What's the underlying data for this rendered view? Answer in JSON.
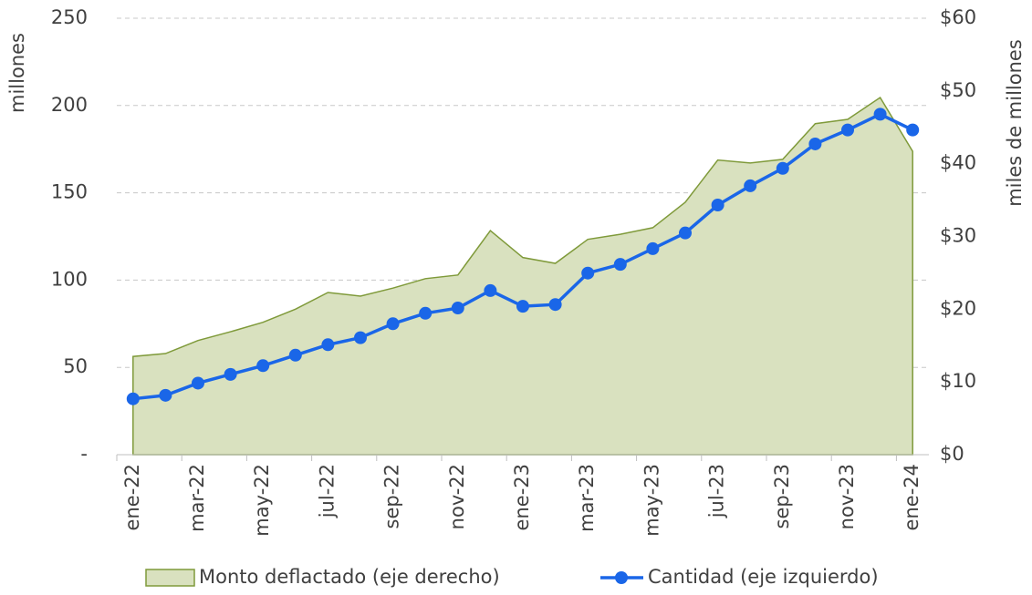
{
  "chart_data": {
    "type": "line-area",
    "ylabel": "millones",
    "y2label": "miles de millones",
    "categories": [
      "ene-22",
      null,
      "mar-22",
      null,
      "may-22",
      null,
      "jul-22",
      null,
      "sep-22",
      null,
      "nov-22",
      null,
      "ene-23",
      null,
      "mar-23",
      null,
      "may-23",
      null,
      "jul-23",
      null,
      "sep-23",
      null,
      "nov-23",
      null,
      "ene-24"
    ],
    "series": [
      {
        "name": "Monto deflactado (eje derecho)",
        "type": "area",
        "axis": "y2",
        "color": "#d9e1bf",
        "edge_color": "#7f9a3a",
        "values": [
          13.5,
          13.9,
          15.7,
          16.9,
          18.2,
          20.0,
          22.3,
          21.8,
          22.9,
          24.2,
          24.7,
          30.8,
          27.1,
          26.3,
          29.6,
          30.3,
          31.2,
          34.7,
          40.5,
          40.1,
          40.6,
          45.5,
          46.1,
          49.1,
          41.7
        ]
      },
      {
        "name": "Cantidad (eje izquierdo)",
        "type": "line",
        "color": "#1a66e8",
        "values": [
          32,
          34,
          41,
          46,
          51,
          57,
          63,
          67,
          75,
          81,
          84,
          94,
          85,
          86,
          104,
          109,
          118,
          127,
          143,
          154,
          164,
          178,
          186,
          195,
          186
        ]
      }
    ],
    "ylim": [
      0,
      250
    ],
    "yticks": [
      {
        "value": 0,
        "label": "-"
      },
      50,
      100,
      150,
      200,
      250
    ],
    "y2lim": [
      0,
      60
    ],
    "y2ticks": [
      {
        "value": 0,
        "label": "$0"
      },
      {
        "value": 10,
        "label": "$10"
      },
      {
        "value": 20,
        "label": "$20"
      },
      {
        "value": 30,
        "label": "$30"
      },
      {
        "value": 40,
        "label": "$40"
      },
      {
        "value": 50,
        "label": "$50"
      },
      {
        "value": 60,
        "label": "$60"
      }
    ],
    "grid": true,
    "legend": "bottom"
  }
}
